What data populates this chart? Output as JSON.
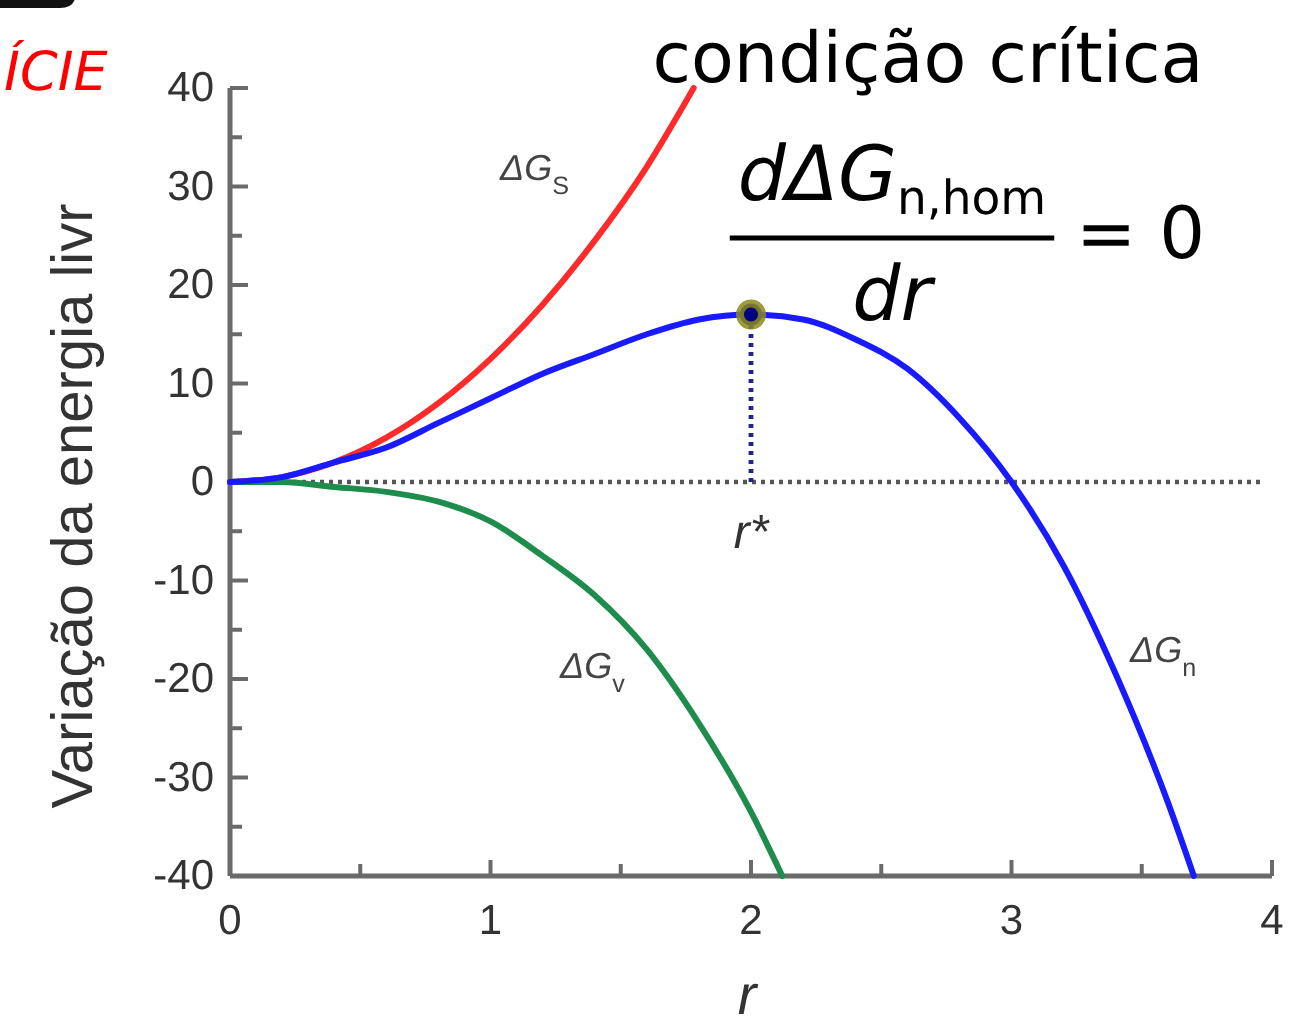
{
  "chart_data": {
    "type": "line",
    "xlabel": "r",
    "ylabel": "Variação da energia livr",
    "xlim": [
      0,
      4
    ],
    "ylim": [
      -40,
      40
    ],
    "xticks": [
      0,
      {
        "value": 0.5,
        "label": null
      },
      1,
      {
        "value": 1.5,
        "label": null
      },
      2,
      {
        "value": 2.5,
        "label": null
      },
      3,
      {
        "value": 3.5,
        "label": null
      },
      4
    ],
    "yticks": [
      -40,
      {
        "value": -35,
        "label": null
      },
      -30,
      {
        "value": -25,
        "label": null
      },
      -20,
      {
        "value": -15,
        "label": null
      },
      -10,
      {
        "value": -5,
        "label": null
      },
      0,
      {
        "value": 5,
        "label": null
      },
      10,
      {
        "value": 15,
        "label": null
      },
      20,
      {
        "value": 25,
        "label": null
      },
      30,
      {
        "value": 35,
        "label": null
      },
      40
    ],
    "grid": false,
    "legend": false,
    "series": [
      {
        "name": "ΔG$_{S}$",
        "color": "#ff2a2a",
        "x": [
          0,
          0.2,
          0.4,
          0.6,
          0.8,
          1,
          1.2,
          1.4,
          1.6,
          1.78
        ],
        "values": [
          0,
          0.5,
          2,
          4.5,
          8,
          12.5,
          18,
          24.5,
          32,
          40
        ]
      },
      {
        "name": "ΔG$_{v}$",
        "color": "#1e8c4c",
        "x": [
          0,
          0.2,
          0.4,
          0.6,
          0.8,
          1,
          1.2,
          1.4,
          1.6,
          1.8,
          2,
          2.12
        ],
        "values": [
          0,
          0,
          -0.5,
          -1,
          -2,
          -4,
          -7.5,
          -11.5,
          -17,
          -24.5,
          -33.5,
          -40
        ]
      },
      {
        "name": "ΔG$_{n}$",
        "color": "#1a1aff",
        "x": [
          0,
          0.2,
          0.4,
          0.6,
          0.8,
          1,
          1.2,
          1.4,
          1.6,
          1.8,
          2,
          2.2,
          2.4,
          2.6,
          2.8,
          3,
          3.2,
          3.4,
          3.6,
          3.7
        ],
        "values": [
          0,
          0.5,
          2,
          3.5,
          6,
          8.5,
          11,
          13,
          15,
          16.5,
          17,
          16.5,
          14.5,
          11.5,
          6.5,
          0,
          -8.5,
          -19.5,
          -32.5,
          -40
        ]
      },
      {
        "type": "line",
        "color": "#23238f",
        "line_style": "dotted",
        "x": [
          2,
          2
        ],
        "values": [
          0,
          17
        ]
      },
      {
        "type": "scatter",
        "color": "#000080",
        "marker": "circle",
        "x": [
          2
        ],
        "values": [
          17
        ]
      }
    ],
    "ref_lines": [
      {
        "axis": "y",
        "value": 0,
        "color": "#555555",
        "line_style": "dotted"
      }
    ],
    "annotations": [
      "ÍCIE",
      "condição crítica",
      "dΔG$_{n,hom}$",
      "dr",
      "= 0",
      {
        "text": "r*",
        "x": 2,
        "y": 0
      }
    ]
  }
}
